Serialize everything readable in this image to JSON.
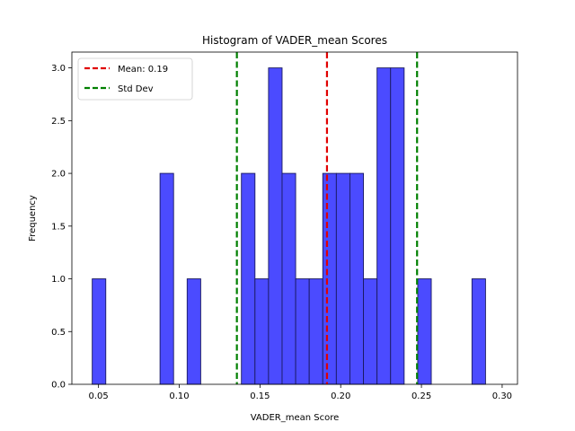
{
  "chart_data": {
    "type": "bar",
    "title": "Histogram of VADER_mean Scores",
    "xlabel": "VADER_mean Score",
    "ylabel": "Frequency",
    "xlim": [
      0.0335,
      0.3095
    ],
    "ylim": [
      0,
      3.15
    ],
    "xticks": [
      0.05,
      0.1,
      0.15,
      0.2,
      0.25,
      0.3
    ],
    "xtick_labels": [
      "0.05",
      "0.10",
      "0.15",
      "0.20",
      "0.25",
      "0.30"
    ],
    "yticks": [
      0.0,
      0.5,
      1.0,
      1.5,
      2.0,
      2.5,
      3.0
    ],
    "ytick_labels": [
      "0.0",
      "0.5",
      "1.0",
      "1.5",
      "2.0",
      "2.5",
      "3.0"
    ],
    "grid": false,
    "bin_edges": [
      0.0461,
      0.0545,
      0.0629,
      0.0713,
      0.0797,
      0.0881,
      0.0965,
      0.1049,
      0.1133,
      0.1217,
      0.1301,
      0.1385,
      0.1469,
      0.1553,
      0.1637,
      0.1721,
      0.1805,
      0.1889,
      0.1973,
      0.2057,
      0.2141,
      0.2225,
      0.2309,
      0.2393,
      0.2477,
      0.2561,
      0.2645,
      0.2729,
      0.2813,
      0.2897,
      0.2981
    ],
    "values": [
      1,
      0,
      0,
      0,
      0,
      2,
      0,
      1,
      0,
      0,
      0,
      2,
      1,
      3,
      2,
      1,
      1,
      2,
      2,
      2,
      1,
      3,
      3,
      0,
      1,
      0,
      0,
      0,
      1,
      0
    ],
    "bar_color": "#4b4bff",
    "bar_edge_color": "#1a1a60",
    "lines": [
      {
        "label": "Mean: 0.19",
        "x": 0.1915,
        "color": "#e00000"
      },
      {
        "label": "Std Dev",
        "x": 0.1357,
        "color": "#008000"
      },
      {
        "label": "",
        "x": 0.2473,
        "color": "#008000"
      }
    ],
    "legend_position": "upper-left",
    "legend": [
      {
        "label": "Mean: 0.19",
        "color": "#e00000"
      },
      {
        "label": "Std Dev",
        "color": "#008000"
      }
    ]
  }
}
